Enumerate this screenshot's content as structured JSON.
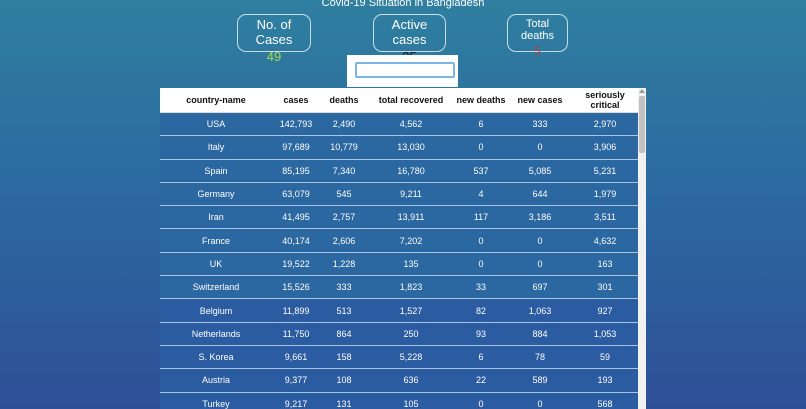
{
  "page": {
    "title": "Covid-19 Situation in Bangladesh"
  },
  "stats": {
    "cases": {
      "label": "No. of Cases",
      "value": "49",
      "color": "#a6d94a"
    },
    "active": {
      "label": "Active cases",
      "value": "25",
      "color": "#111111"
    },
    "deaths": {
      "label": "Total deaths",
      "value": "5",
      "color": "#b8413a"
    }
  },
  "search": {
    "value": "",
    "placeholder": ""
  },
  "table": {
    "headers": [
      "country-name",
      "cases",
      "deaths",
      "total recovered",
      "new deaths",
      "new cases",
      "seriously critical"
    ],
    "rows": [
      [
        "USA",
        "142,793",
        "2,490",
        "4,562",
        "6",
        "333",
        "2,970"
      ],
      [
        "Italy",
        "97,689",
        "10,779",
        "13,030",
        "0",
        "0",
        "3,906"
      ],
      [
        "Spain",
        "85,195",
        "7,340",
        "16,780",
        "537",
        "5,085",
        "5,231"
      ],
      [
        "Germany",
        "63,079",
        "545",
        "9,211",
        "4",
        "644",
        "1,979"
      ],
      [
        "Iran",
        "41,495",
        "2,757",
        "13,911",
        "117",
        "3,186",
        "3,511"
      ],
      [
        "France",
        "40,174",
        "2,606",
        "7,202",
        "0",
        "0",
        "4,632"
      ],
      [
        "UK",
        "19,522",
        "1,228",
        "135",
        "0",
        "0",
        "163"
      ],
      [
        "Switzerland",
        "15,526",
        "333",
        "1,823",
        "33",
        "697",
        "301"
      ],
      [
        "Belgium",
        "11,899",
        "513",
        "1,527",
        "82",
        "1,063",
        "927"
      ],
      [
        "Netherlands",
        "11,750",
        "864",
        "250",
        "93",
        "884",
        "1,053"
      ],
      [
        "S. Korea",
        "9,661",
        "158",
        "5,228",
        "6",
        "78",
        "59"
      ],
      [
        "Austria",
        "9,377",
        "108",
        "636",
        "22",
        "589",
        "193"
      ],
      [
        "Turkey",
        "9,217",
        "131",
        "105",
        "0",
        "0",
        "568"
      ]
    ]
  }
}
